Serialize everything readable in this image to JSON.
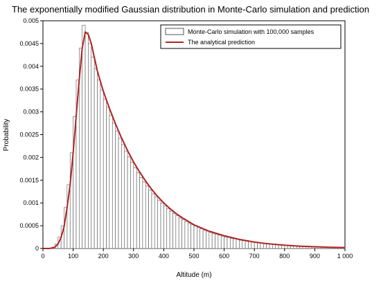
{
  "chart_data": {
    "type": "bar",
    "title": "The exponentially modified Gaussian distribution in Monte-Carlo simulation and prediction",
    "xlabel": "Altitude (m)",
    "ylabel": "Probability",
    "xlim": [
      0,
      1000
    ],
    "ylim": [
      0,
      0.005
    ],
    "x_ticks": [
      0,
      100,
      200,
      300,
      400,
      500,
      600,
      700,
      800,
      900,
      1000
    ],
    "x_tick_labels": [
      "0",
      "100",
      "200",
      "300",
      "400",
      "500",
      "600",
      "700",
      "800",
      "900",
      "1 000"
    ],
    "y_ticks": [
      0,
      0.0005,
      0.001,
      0.0015,
      0.002,
      0.0025,
      0.003,
      0.0035,
      0.004,
      0.0045,
      0.005
    ],
    "y_tick_labels": [
      "0",
      "0.0005",
      "0.001",
      "0.0015",
      "0.002",
      "0.0025",
      "0.003",
      "0.0035",
      "0.004",
      "0.0045",
      "0.005"
    ],
    "grid": false,
    "legend_position": "top-right",
    "bin_width": 10,
    "series": [
      {
        "name": "Monte-Carlo simulation with 100,000 samples",
        "kind": "histogram",
        "color": "#555555",
        "bin_centers": [
          5,
          15,
          25,
          35,
          45,
          55,
          65,
          75,
          85,
          95,
          105,
          115,
          125,
          135,
          145,
          155,
          165,
          175,
          185,
          195,
          205,
          215,
          225,
          235,
          245,
          255,
          265,
          275,
          285,
          295,
          305,
          315,
          325,
          335,
          345,
          355,
          365,
          375,
          385,
          395,
          405,
          415,
          425,
          435,
          445,
          455,
          465,
          475,
          485,
          495,
          505,
          515,
          525,
          535,
          545,
          555,
          565,
          575,
          585,
          595,
          605,
          615,
          625,
          635,
          645,
          655,
          665,
          675,
          685,
          695,
          705,
          715,
          725,
          735,
          745,
          755,
          765,
          775,
          785,
          795,
          805,
          815,
          825,
          835,
          845,
          855,
          865,
          875,
          885,
          895,
          905,
          915,
          925,
          935,
          945,
          955,
          965,
          975,
          985,
          995
        ],
        "values": [
          0,
          0,
          1e-05,
          3e-05,
          0.0001,
          0.00025,
          0.0005,
          0.0009,
          0.0014,
          0.0021,
          0.0029,
          0.0037,
          0.0044,
          0.0049,
          0.00475,
          0.0045,
          0.0042,
          0.00395,
          0.0037,
          0.00348,
          0.00328,
          0.0031,
          0.00292,
          0.00275,
          0.00258,
          0.00242,
          0.00228,
          0.00214,
          0.00201,
          0.00189,
          0.00177,
          0.00166,
          0.00156,
          0.00146,
          0.00137,
          0.00128,
          0.0012,
          0.00113,
          0.00106,
          0.00099,
          0.00093,
          0.00087,
          0.00082,
          0.00077,
          0.00072,
          0.00067,
          0.00063,
          0.00059,
          0.00055,
          0.00052,
          0.00049,
          0.00046,
          0.00043,
          0.0004,
          0.00038,
          0.00035,
          0.00033,
          0.00031,
          0.00029,
          0.00027,
          0.00025,
          0.00024,
          0.00022,
          0.00021,
          0.0002,
          0.00018,
          0.00017,
          0.00016,
          0.00015,
          0.00014,
          0.00013,
          0.000122,
          0.000114,
          0.000107,
          0.0001,
          9.4e-05,
          8.8e-05,
          8.2e-05,
          7.7e-05,
          7.2e-05,
          6.7e-05,
          6.3e-05,
          5.9e-05,
          5.5e-05,
          5.2e-05,
          4.8e-05,
          4.5e-05,
          4.2e-05,
          4e-05,
          3.7e-05,
          3.5e-05,
          3.2e-05,
          3e-05,
          2.8e-05,
          2.7e-05,
          2.5e-05,
          2.3e-05,
          2.2e-05,
          2e-05,
          1.9e-05
        ]
      },
      {
        "name": "The analytical prediction",
        "kind": "line",
        "color": "#b22222",
        "x": [
          0,
          20,
          30,
          40,
          50,
          60,
          70,
          80,
          90,
          100,
          110,
          120,
          130,
          140,
          150,
          160,
          170,
          180,
          200,
          220,
          240,
          260,
          280,
          300,
          320,
          340,
          360,
          380,
          400,
          420,
          440,
          460,
          480,
          500,
          550,
          600,
          650,
          700,
          750,
          800,
          850,
          900,
          950,
          1000
        ],
        "y": [
          0,
          0,
          1e-05,
          3e-05,
          0.0001,
          0.00024,
          0.00048,
          0.0009,
          0.0014,
          0.0021,
          0.0029,
          0.0037,
          0.0044,
          0.00475,
          0.0047,
          0.0045,
          0.0042,
          0.0039,
          0.00345,
          0.00308,
          0.00274,
          0.00243,
          0.00215,
          0.0019,
          0.00168,
          0.00148,
          0.0013,
          0.00114,
          0.001,
          0.00088,
          0.00077,
          0.00068,
          0.0006,
          0.00052,
          0.00038,
          0.00028,
          0.0002,
          0.00014,
          0.0001,
          7.2e-05,
          5.2e-05,
          3.8e-05,
          2.7e-05,
          2e-05
        ]
      }
    ]
  }
}
